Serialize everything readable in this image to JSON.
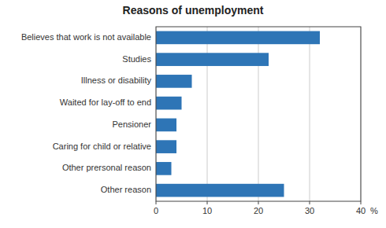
{
  "chart_data": {
    "type": "bar",
    "orientation": "horizontal",
    "title": "Reasons of unemployment",
    "categories": [
      "Other reason",
      "Other prersonal reason",
      "Caring for child or relative",
      "Pensioner",
      "Waited for lay-off to end",
      "Illness or disability",
      "Studies",
      "Believes that work is not available"
    ],
    "values": [
      25,
      3,
      4,
      4,
      5,
      7,
      22,
      32
    ],
    "color": "#2E75B6",
    "xlim": [
      0,
      40
    ],
    "xticks": [
      0,
      10,
      20,
      30,
      40
    ],
    "xlabel": "%",
    "grid": true
  }
}
